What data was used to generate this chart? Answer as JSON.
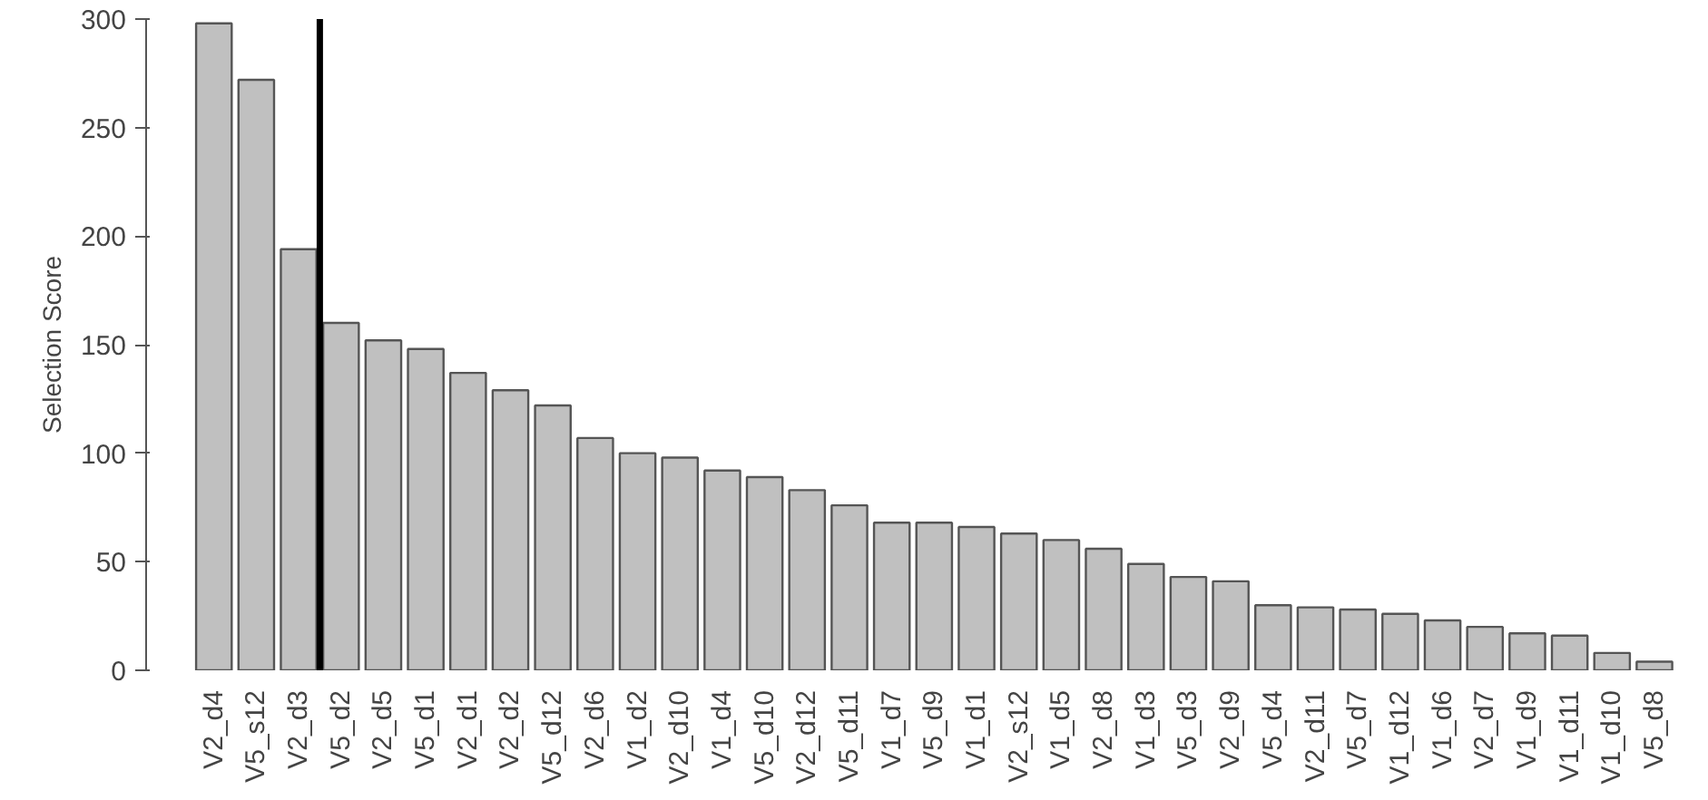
{
  "chart_data": {
    "type": "bar",
    "ylabel": "Selection Score",
    "categories": [
      "V2_d4",
      "V5_s12",
      "V2_d3",
      "V5_d2",
      "V2_d5",
      "V5_d1",
      "V2_d1",
      "V2_d2",
      "V5_d12",
      "V2_d6",
      "V1_d2",
      "V2_d10",
      "V1_d4",
      "V5_d10",
      "V2_d12",
      "V5_d11",
      "V1_d7",
      "V5_d9",
      "V1_d1",
      "V2_s12",
      "V1_d5",
      "V2_d8",
      "V1_d3",
      "V5_d3",
      "V2_d9",
      "V5_d4",
      "V2_d11",
      "V5_d7",
      "V1_d12",
      "V1_d6",
      "V2_d7",
      "V1_d9",
      "V1_d11",
      "V1_d10",
      "V5_d8"
    ],
    "values": [
      298,
      272,
      194,
      160,
      152,
      148,
      137,
      129,
      122,
      107,
      100,
      98,
      92,
      89,
      83,
      76,
      68,
      68,
      66,
      63,
      60,
      56,
      49,
      43,
      41,
      30,
      29,
      28,
      26,
      23,
      20,
      17,
      16,
      8,
      4
    ],
    "color": "#c0c0c0",
    "ylim": [
      0,
      300
    ],
    "yticks": [
      0,
      50,
      100,
      150,
      200,
      250,
      300
    ],
    "grid": false
  }
}
